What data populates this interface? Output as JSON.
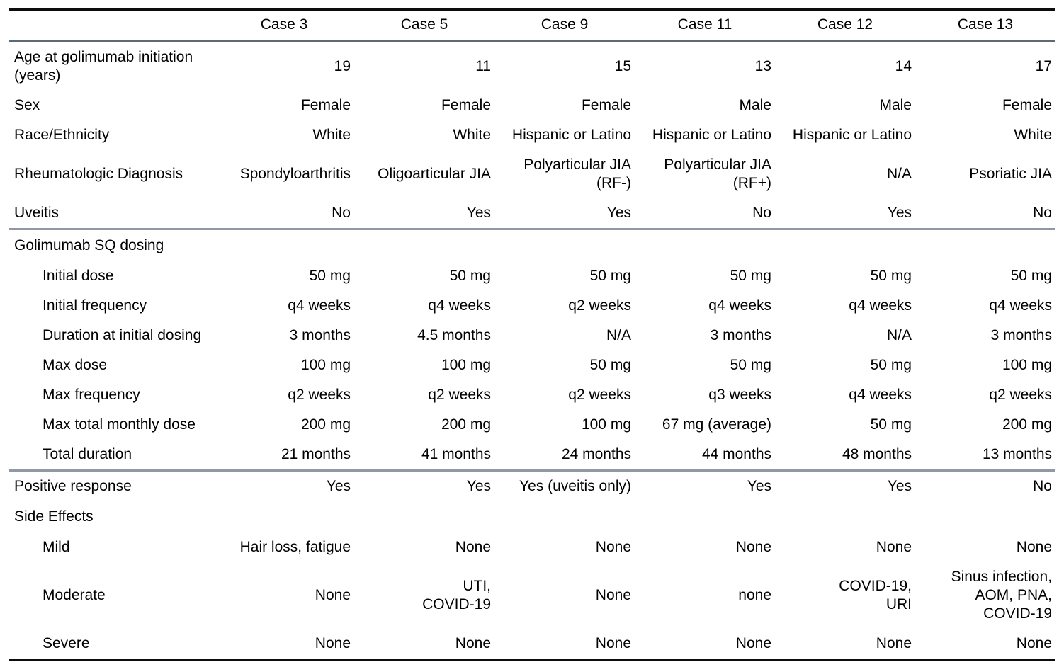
{
  "table": {
    "columns": [
      "",
      "Case 3",
      "Case 5",
      "Case 9",
      "Case 11",
      "Case 12",
      "Case 13"
    ],
    "rows": [
      {
        "label": "Age at golimumab initiation\n(years)",
        "indent": false,
        "section": false,
        "rule_after": false,
        "values": [
          "19",
          "11",
          "15",
          "13",
          "14",
          "17"
        ]
      },
      {
        "label": "Sex",
        "indent": false,
        "section": false,
        "rule_after": false,
        "values": [
          "Female",
          "Female",
          "Female",
          "Male",
          "Male",
          "Female"
        ]
      },
      {
        "label": "Race/Ethnicity",
        "indent": false,
        "section": false,
        "rule_after": false,
        "values": [
          "White",
          "White",
          "Hispanic or Latino",
          "Hispanic or Latino",
          "Hispanic or Latino",
          "White"
        ]
      },
      {
        "label": "Rheumatologic Diagnosis",
        "indent": false,
        "section": false,
        "rule_after": false,
        "values": [
          "Spondyloarthritis",
          "Oligoarticular JIA",
          "Polyarticular JIA\n(RF-)",
          "Polyarticular JIA\n(RF+)",
          "N/A",
          "Psoriatic JIA"
        ]
      },
      {
        "label": "Uveitis",
        "indent": false,
        "section": false,
        "rule_after": true,
        "values": [
          "No",
          "Yes",
          "Yes",
          "No",
          "Yes",
          "No"
        ]
      },
      {
        "label": "Golimumab SQ dosing",
        "indent": false,
        "section": true,
        "rule_after": false,
        "values": []
      },
      {
        "label": "Initial dose",
        "indent": true,
        "section": false,
        "rule_after": false,
        "values": [
          "50 mg",
          "50 mg",
          "50 mg",
          "50 mg",
          "50 mg",
          "50 mg"
        ]
      },
      {
        "label": "Initial frequency",
        "indent": true,
        "section": false,
        "rule_after": false,
        "values": [
          "q4 weeks",
          "q4 weeks",
          "q2 weeks",
          "q4 weeks",
          "q4 weeks",
          "q4 weeks"
        ]
      },
      {
        "label": "Duration at initial dosing",
        "indent": true,
        "section": false,
        "rule_after": false,
        "values": [
          "3 months",
          "4.5 months",
          "N/A",
          "3 months",
          "N/A",
          "3 months"
        ]
      },
      {
        "label": "Max dose",
        "indent": true,
        "section": false,
        "rule_after": false,
        "values": [
          "100 mg",
          "100 mg",
          "50 mg",
          "50 mg",
          "50 mg",
          "100 mg"
        ]
      },
      {
        "label": "Max frequency",
        "indent": true,
        "section": false,
        "rule_after": false,
        "values": [
          "q2 weeks",
          "q2 weeks",
          "q2 weeks",
          "q3 weeks",
          "q4 weeks",
          "q2 weeks"
        ]
      },
      {
        "label": "Max total monthly dose",
        "indent": true,
        "section": false,
        "rule_after": false,
        "values": [
          "200 mg",
          "200 mg",
          "100 mg",
          "67 mg (average)",
          "50 mg",
          "200 mg"
        ]
      },
      {
        "label": "Total duration",
        "indent": true,
        "section": false,
        "rule_after": true,
        "values": [
          "21 months",
          "41 months",
          "24 months",
          "44 months",
          "48 months",
          "13 months"
        ]
      },
      {
        "label": "Positive response",
        "indent": false,
        "section": false,
        "rule_after": false,
        "values": [
          "Yes",
          "Yes",
          "Yes (uveitis only)",
          "Yes",
          "Yes",
          "No"
        ]
      },
      {
        "label": "Side Effects",
        "indent": false,
        "section": true,
        "rule_after": false,
        "values": []
      },
      {
        "label": "Mild",
        "indent": true,
        "section": false,
        "rule_after": false,
        "values": [
          "Hair loss, fatigue",
          "None",
          "None",
          "None",
          "None",
          "None"
        ]
      },
      {
        "label": "Moderate",
        "indent": true,
        "section": false,
        "rule_after": false,
        "values": [
          "None",
          "UTI,\nCOVID-19",
          "None",
          "none",
          "COVID-19,\nURI",
          "Sinus infection,\nAOM, PNA,\nCOVID-19"
        ]
      },
      {
        "label": "Severe",
        "indent": true,
        "section": false,
        "rule_after": false,
        "values": [
          "None",
          "None",
          "None",
          "None",
          "None",
          "None"
        ]
      }
    ]
  }
}
